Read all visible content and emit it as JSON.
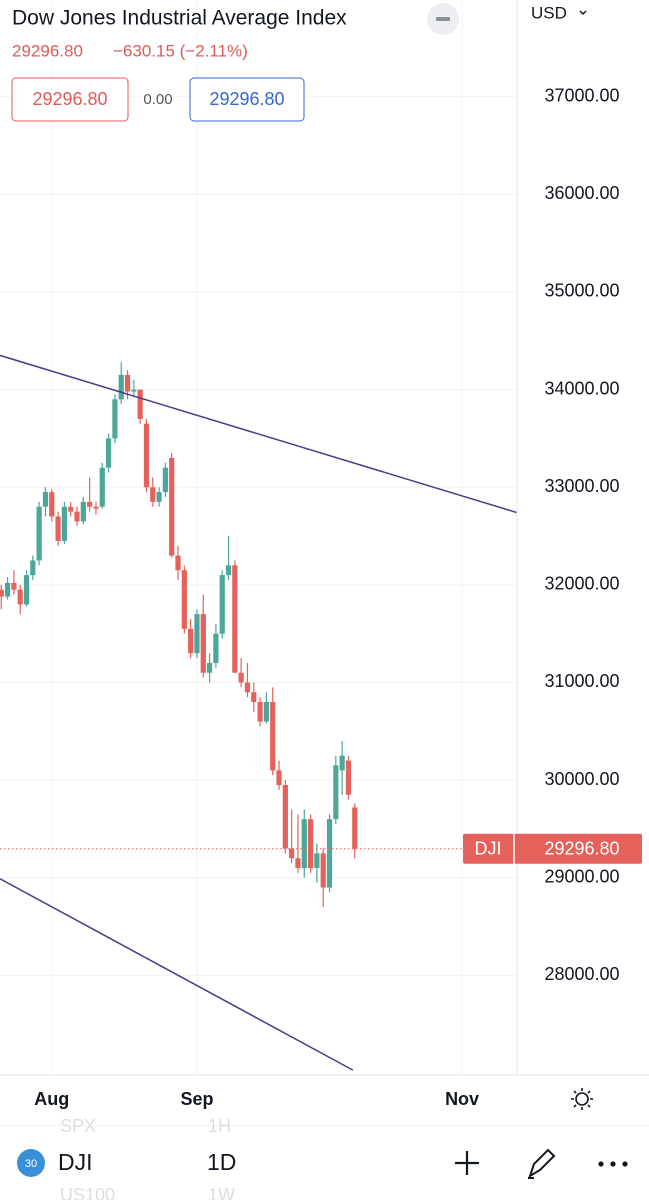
{
  "header": {
    "title": "Dow Jones Industrial Average Index",
    "price": "29296.80",
    "change": "−630.15 (−2.11%)",
    "bid": "29296.80",
    "spread": "0.00",
    "ask": "29296.80",
    "currency": "USD"
  },
  "chart_data": {
    "type": "candlestick",
    "x": [
      -8,
      -7,
      -6,
      -5,
      -4,
      -3,
      -2,
      -1,
      0,
      1,
      2,
      3,
      4,
      5,
      6,
      7,
      8,
      9,
      10,
      11,
      12,
      13,
      14,
      15,
      16,
      17,
      18,
      19,
      20,
      21,
      22,
      23,
      24,
      25,
      26,
      27,
      28,
      29,
      30,
      31,
      32,
      33,
      34,
      35,
      36,
      37,
      38,
      39,
      40,
      41,
      42,
      43,
      44,
      45,
      46,
      47,
      48
    ],
    "series": [
      {
        "name": "DJI",
        "up_color": "#4ea699",
        "down_color": "#e4625b",
        "open": [
          31950,
          31880,
          32020,
          31950,
          31800,
          32100,
          32250,
          32800,
          32950,
          32700,
          32450,
          32800,
          32750,
          32650,
          32850,
          32800,
          32800,
          33200,
          33500,
          33900,
          34150,
          33980,
          34000,
          33650,
          33000,
          32850,
          32950,
          33300,
          32300,
          32150,
          31550,
          31300,
          31700,
          31100,
          31200,
          31500,
          32100,
          32200,
          31100,
          31000,
          30900,
          30800,
          30600,
          30800,
          30100,
          29950,
          29300,
          29200,
          29100,
          29600,
          29100,
          29250,
          28900,
          29600,
          30100,
          30200,
          29720
        ],
        "high": [
          32000,
          32080,
          32150,
          32000,
          32150,
          32300,
          32850,
          33000,
          32980,
          32750,
          32850,
          32850,
          32800,
          32900,
          33100,
          32850,
          33250,
          33550,
          33950,
          34280,
          34200,
          34100,
          34000,
          33700,
          33100,
          33000,
          33250,
          33350,
          32400,
          32200,
          31650,
          31750,
          31900,
          31300,
          31600,
          32150,
          32500,
          32250,
          31250,
          31200,
          31000,
          30850,
          30900,
          30950,
          30200,
          30000,
          29700,
          29650,
          29700,
          29650,
          29350,
          29300,
          29650,
          30250,
          30400,
          30250,
          29760
        ],
        "low": [
          31750,
          31850,
          31900,
          31700,
          31780,
          32050,
          32200,
          32700,
          32650,
          32400,
          32420,
          32700,
          32600,
          32620,
          32750,
          32720,
          32780,
          33150,
          33450,
          33850,
          33900,
          33920,
          33650,
          32950,
          32800,
          32800,
          32900,
          32280,
          32050,
          31500,
          31250,
          31250,
          31050,
          31000,
          31150,
          31450,
          32050,
          31100,
          30950,
          30850,
          30700,
          30550,
          30580,
          30050,
          29900,
          29250,
          29150,
          29050,
          29000,
          29050,
          28950,
          28700,
          28850,
          29550,
          29850,
          29800,
          29200
        ],
        "close": [
          31880,
          32020,
          31950,
          31800,
          32100,
          32250,
          32800,
          32950,
          32700,
          32450,
          32800,
          32750,
          32650,
          32850,
          32800,
          32780,
          33200,
          33500,
          33900,
          34150,
          33980,
          34000,
          33700,
          33000,
          32850,
          32950,
          33200,
          32300,
          32150,
          31550,
          31300,
          31700,
          31100,
          31200,
          31500,
          32100,
          32200,
          31100,
          31000,
          30900,
          30800,
          30600,
          30800,
          30100,
          29950,
          29300,
          29200,
          29100,
          29600,
          29100,
          29250,
          28900,
          29600,
          30150,
          30250,
          29850,
          29296.8
        ]
      }
    ],
    "xlim": [
      -8.2,
      73.7
    ],
    "xticks": [
      {
        "value": 0,
        "label": "Aug"
      },
      {
        "value": 23,
        "label": "Sep"
      },
      {
        "value": 65,
        "label": "Nov"
      }
    ],
    "ylim": [
      26980,
      37990
    ],
    "yticks": [
      {
        "value": 28000,
        "label": "28000.00"
      },
      {
        "value": 29000,
        "label": "29000.00"
      },
      {
        "value": 30000,
        "label": "30000.00"
      },
      {
        "value": 31000,
        "label": "31000.00"
      },
      {
        "value": 32000,
        "label": "32000.00"
      },
      {
        "value": 33000,
        "label": "33000.00"
      },
      {
        "value": 34000,
        "label": "34000.00"
      },
      {
        "value": 35000,
        "label": "35000.00"
      },
      {
        "value": 36000,
        "label": "36000.00"
      },
      {
        "value": 37000,
        "label": "37000.00"
      }
    ],
    "grid": true,
    "last_price": {
      "value": 29296.8,
      "label": "29296.80",
      "symbol": "DJI",
      "color": "#e4625b"
    },
    "trendlines": [
      {
        "x": [
          -8.2,
          73.7
        ],
        "y": [
          34350,
          32740
        ],
        "color": "#4b3a8f"
      },
      {
        "x": [
          -8.2,
          47.7
        ],
        "y": [
          28990,
          27030
        ],
        "color": "#4b3a8f"
      }
    ]
  },
  "toolbar": {
    "badge": "30",
    "symbol": "DJI",
    "interval": "1D",
    "ghost_symbol_above": "SPX",
    "ghost_interval_above": "1H",
    "ghost_symbol_below": "US100",
    "ghost_interval_below": "1W"
  }
}
